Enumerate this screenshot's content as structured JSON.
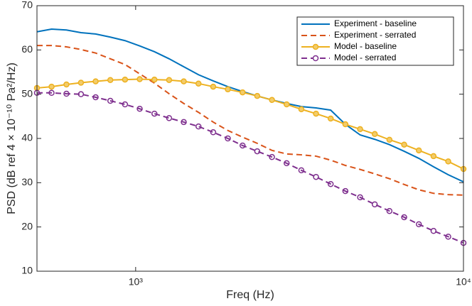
{
  "chart_data": {
    "type": "line",
    "x_label": "Freq (Hz)",
    "y_label": "PSD (dB ref 4 × 10⁻¹⁰ Pa²/Hz)",
    "x_log": true,
    "xlim": [
      500,
      10000
    ],
    "xticks": [
      {
        "value": 1000,
        "label": "10³"
      },
      {
        "value": 10000,
        "label": "10⁴"
      }
    ],
    "ylim": [
      10,
      70
    ],
    "yticks": [
      10,
      20,
      30,
      40,
      50,
      60,
      70
    ],
    "legend_position": "top-right",
    "x": [
      500,
      554,
      615,
      681,
      755,
      837,
      928,
      1029,
      1141,
      1265,
      1402,
      1555,
      1724,
      1911,
      2119,
      2349,
      2605,
      2888,
      3202,
      3550,
      3935,
      4363,
      4838,
      5363,
      5946,
      6593,
      7310,
      8104,
      8985,
      10000
    ],
    "series": [
      {
        "name": "Experiment - baseline",
        "color": "#0072bd",
        "style": "solid",
        "marker": "none",
        "values": [
          64.1,
          64.7,
          64.5,
          63.9,
          63.6,
          62.9,
          62.1,
          60.9,
          59.6,
          58.0,
          56.2,
          54.4,
          53.0,
          51.7,
          50.6,
          49.6,
          48.7,
          47.9,
          47.2,
          46.9,
          46.4,
          43.2,
          40.8,
          39.8,
          38.6,
          37.1,
          35.5,
          33.6,
          31.8,
          30.2
        ]
      },
      {
        "name": "Experiment - serrated",
        "color": "#d95319",
        "style": "dashed",
        "marker": "none",
        "values": [
          61.0,
          61.0,
          60.7,
          60.1,
          59.3,
          58.0,
          56.7,
          54.6,
          52.5,
          50.1,
          47.9,
          45.9,
          43.7,
          41.8,
          40.3,
          38.9,
          37.3,
          36.5,
          36.3,
          36.0,
          35.1,
          33.9,
          33.0,
          32.0,
          30.9,
          29.6,
          28.4,
          27.6,
          27.3,
          27.2
        ]
      },
      {
        "name": "Model - baseline",
        "color": "#edb120",
        "style": "solid",
        "marker": "circle",
        "values": [
          51.4,
          51.7,
          52.2,
          52.6,
          52.9,
          53.2,
          53.3,
          53.4,
          53.3,
          53.2,
          52.9,
          52.4,
          51.7,
          51.1,
          50.4,
          49.6,
          48.7,
          47.7,
          46.6,
          45.6,
          44.5,
          43.2,
          42.1,
          41.0,
          39.7,
          38.6,
          37.3,
          36.0,
          34.8,
          33.1
        ]
      },
      {
        "name": "Model - serrated",
        "color": "#7e2f8e",
        "style": "dashed",
        "marker": "circle",
        "values": [
          50.3,
          50.3,
          50.1,
          50.0,
          49.3,
          48.5,
          47.7,
          46.7,
          45.6,
          44.6,
          43.7,
          42.7,
          41.4,
          40.0,
          38.4,
          37.1,
          35.8,
          34.4,
          32.8,
          31.3,
          29.7,
          28.1,
          26.7,
          25.1,
          23.6,
          22.2,
          20.6,
          19.1,
          17.8,
          16.4
        ]
      }
    ]
  }
}
